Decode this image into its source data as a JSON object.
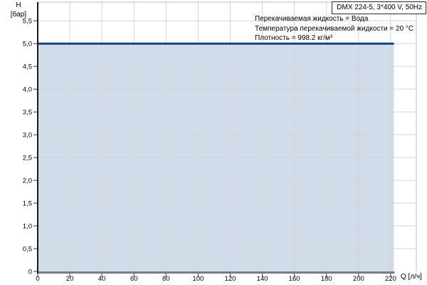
{
  "header": {
    "model_label": "DMX 224-5, 3*400 V, 50Hz"
  },
  "annotations": {
    "line1": "Перекачиваемая жидкость = Вода",
    "line2": "Температура перекачиваемой жидкости = 20 °C",
    "line3": "Плотность = 998.2 кг/м³"
  },
  "chart_data": {
    "type": "area",
    "title": "DMX 224-5, 3*400 V, 50Hz",
    "xlabel": "Q [л/ч]",
    "ylabel_line1": "H",
    "ylabel_line2": "[бар]",
    "xlim": [
      0,
      236
    ],
    "ylim": [
      0,
      5.91
    ],
    "grid": true,
    "x_ticks": [
      {
        "v": 0,
        "label": "0"
      },
      {
        "v": 20,
        "label": "20"
      },
      {
        "v": 40,
        "label": "40"
      },
      {
        "v": 60,
        "label": "60"
      },
      {
        "v": 80,
        "label": "80"
      },
      {
        "v": 100,
        "label": "100"
      },
      {
        "v": 120,
        "label": "120"
      },
      {
        "v": 140,
        "label": "140"
      },
      {
        "v": 160,
        "label": "160"
      },
      {
        "v": 180,
        "label": "180"
      },
      {
        "v": 200,
        "label": "200"
      },
      {
        "v": 220,
        "label": "220"
      }
    ],
    "y_ticks": [
      {
        "v": 0,
        "label": "0"
      },
      {
        "v": 0.5,
        "label": "0,5"
      },
      {
        "v": 1,
        "label": "1,0"
      },
      {
        "v": 1.5,
        "label": "1,5"
      },
      {
        "v": 2,
        "label": "2,0"
      },
      {
        "v": 2.5,
        "label": "2,5"
      },
      {
        "v": 3,
        "label": "3,0"
      },
      {
        "v": 3.5,
        "label": "3,5"
      },
      {
        "v": 4,
        "label": "4,0"
      },
      {
        "v": 4.5,
        "label": "4,5"
      },
      {
        "v": 5,
        "label": "5,0"
      },
      {
        "v": 5.5,
        "label": "5,5"
      }
    ],
    "series": [
      {
        "name": "DMX 224-5",
        "points": [
          [
            0,
            5.0
          ],
          [
            222,
            5.0
          ]
        ],
        "fill_to_zero": true
      }
    ],
    "colors": {
      "fill": "#d0dce9",
      "line": "#11477e",
      "gridline": "#d3d3d3",
      "plot_border": "#bdbdbd",
      "x_axis": "#7d7d7d",
      "y_axis": "#1a1a1a",
      "tick": "#333333"
    }
  }
}
